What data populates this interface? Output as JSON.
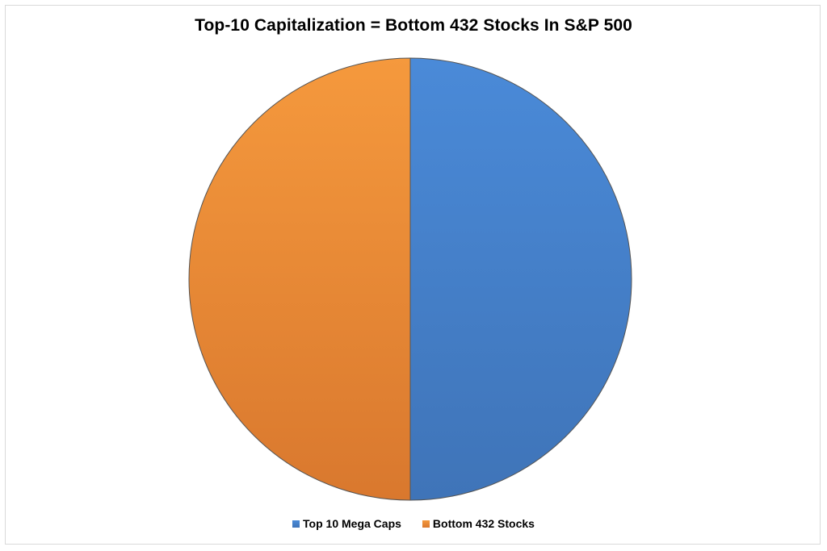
{
  "chart_data": {
    "type": "pie",
    "title": "Top-10 Capitalization = Bottom 432 Stocks In S&P 500",
    "categories": [
      "Top 10 Mega Caps",
      "Bottom 432 Stocks"
    ],
    "values": [
      50,
      50
    ],
    "colors": [
      "#4a8ad8",
      "#f5993d"
    ],
    "gradient_dark": [
      "#3f74b8",
      "#d9782e"
    ],
    "legend_position": "bottom"
  }
}
